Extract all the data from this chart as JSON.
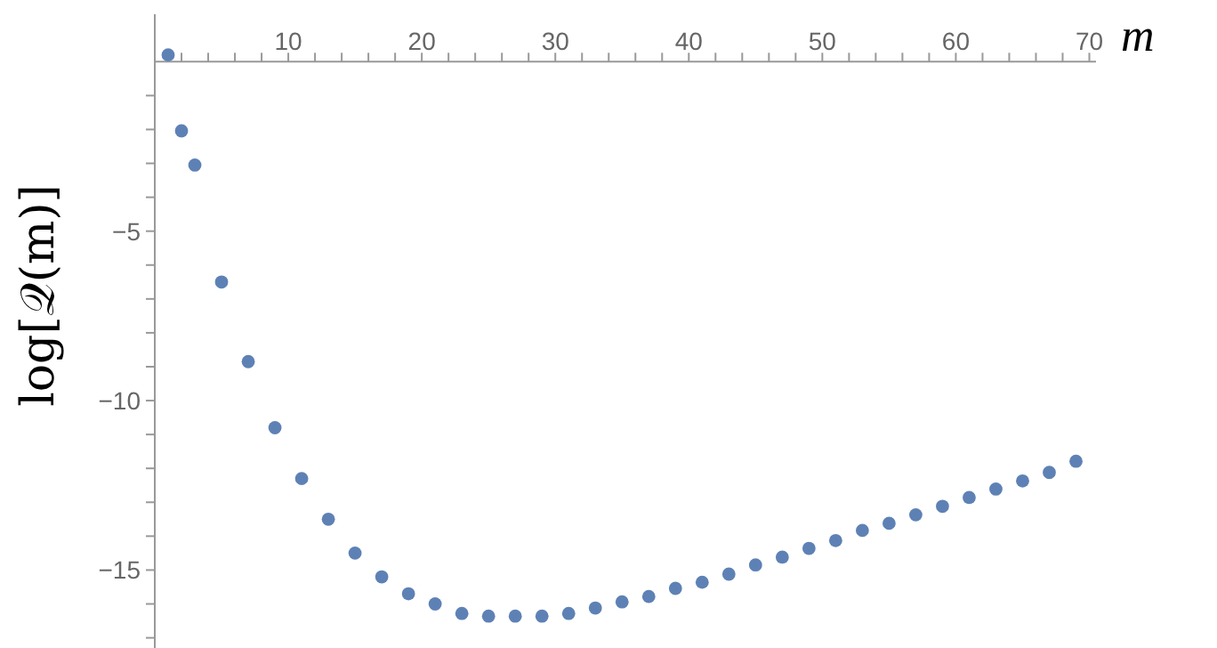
{
  "chart_data": {
    "type": "scatter",
    "xlabel": "m",
    "ylabel": "log[𝒬(m)]",
    "color": "#5e81b5",
    "marker": "circle",
    "x": [
      1,
      2,
      3,
      5,
      7,
      9,
      11,
      13,
      15,
      17,
      19,
      21,
      23,
      25,
      27,
      29,
      31,
      33,
      35,
      37,
      39,
      41,
      43,
      45,
      47,
      49,
      51,
      53,
      55,
      57,
      59,
      61,
      63,
      65,
      67,
      69
    ],
    "values": [
      0.2,
      -2.04,
      -3.05,
      -6.5,
      -8.85,
      -10.8,
      -12.3,
      -13.5,
      -14.5,
      -15.2,
      -15.7,
      -16.0,
      -16.28,
      -16.36,
      -16.36,
      -16.36,
      -16.28,
      -16.12,
      -15.94,
      -15.78,
      -15.54,
      -15.36,
      -15.12,
      -14.85,
      -14.62,
      -14.36,
      -14.13,
      -13.83,
      -13.62,
      -13.37,
      -13.12,
      -12.86,
      -12.61,
      -12.37,
      -12.12,
      -11.79
    ],
    "xlim": [
      0,
      70.5
    ],
    "ylim": [
      -17.3,
      1.4
    ],
    "xticks": [
      {
        "value": 2,
        "label": null
      },
      {
        "value": 4,
        "label": null
      },
      {
        "value": 6,
        "label": null
      },
      {
        "value": 8,
        "label": null
      },
      10,
      {
        "value": 12,
        "label": null
      },
      {
        "value": 14,
        "label": null
      },
      {
        "value": 16,
        "label": null
      },
      {
        "value": 18,
        "label": null
      },
      20,
      {
        "value": 22,
        "label": null
      },
      {
        "value": 24,
        "label": null
      },
      {
        "value": 26,
        "label": null
      },
      {
        "value": 28,
        "label": null
      },
      30,
      {
        "value": 32,
        "label": null
      },
      {
        "value": 34,
        "label": null
      },
      {
        "value": 36,
        "label": null
      },
      {
        "value": 38,
        "label": null
      },
      40,
      {
        "value": 42,
        "label": null
      },
      {
        "value": 44,
        "label": null
      },
      {
        "value": 46,
        "label": null
      },
      {
        "value": 48,
        "label": null
      },
      50,
      {
        "value": 52,
        "label": null
      },
      {
        "value": 54,
        "label": null
      },
      {
        "value": 56,
        "label": null
      },
      {
        "value": 58,
        "label": null
      },
      60,
      {
        "value": 62,
        "label": null
      },
      {
        "value": 64,
        "label": null
      },
      {
        "value": 66,
        "label": null
      },
      {
        "value": 68,
        "label": null
      },
      70
    ],
    "yticks": [
      {
        "value": -17,
        "label": null
      },
      {
        "value": -16,
        "label": null
      },
      {
        "value": -15,
        "label": "−15"
      },
      {
        "value": -14,
        "label": null
      },
      {
        "value": -13,
        "label": null
      },
      {
        "value": -12,
        "label": null
      },
      {
        "value": -11,
        "label": null
      },
      {
        "value": -10,
        "label": "−10"
      },
      {
        "value": -9,
        "label": null
      },
      {
        "value": -8,
        "label": null
      },
      {
        "value": -7,
        "label": null
      },
      {
        "value": -6,
        "label": null
      },
      {
        "value": -5,
        "label": "−5"
      },
      {
        "value": -4,
        "label": null
      },
      {
        "value": -3,
        "label": null
      },
      {
        "value": -2,
        "label": null
      },
      {
        "value": -1,
        "label": null
      }
    ]
  }
}
